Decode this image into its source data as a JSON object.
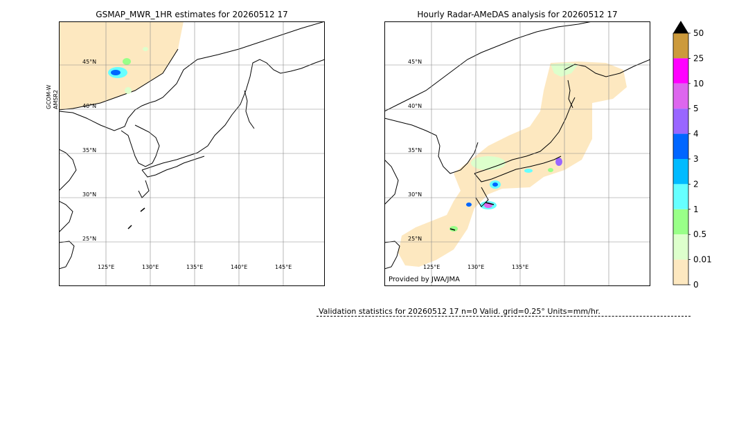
{
  "left_panel": {
    "title": "GSMAP_MWR_1HR estimates for 20260512 17",
    "side_label_1": "GCOM-W",
    "side_label_2": "AMSR2",
    "lat_labels": [
      "45°N",
      "40°N",
      "35°N",
      "30°N",
      "25°N"
    ],
    "lon_labels": [
      "125°E",
      "130°E",
      "135°E",
      "140°E",
      "145°E"
    ]
  },
  "right_panel": {
    "title": "Hourly Radar-AMeDAS analysis for 20260512 17",
    "lat_labels": [
      "45°N",
      "40°N",
      "35°N",
      "30°N",
      "25°N"
    ],
    "lon_labels": [
      "125°E",
      "130°E",
      "135°E"
    ],
    "credit": "Provided by JWA/JMA"
  },
  "colorbar": {
    "labels": [
      "50",
      "25",
      "10",
      "5",
      "4",
      "3",
      "2",
      "1",
      "0.5",
      "0.01",
      "0"
    ],
    "colors": [
      "#cc9a3c",
      "#ff00ff",
      "#dd66ee",
      "#9966ff",
      "#0066ff",
      "#00bbff",
      "#66ffff",
      "#99ff88",
      "#ddffcc",
      "#fde8c0"
    ],
    "extend_color": "#000000"
  },
  "validation": {
    "text": "Validation statistics for 20260512 17  n=0 Valid. grid=0.25° Units=mm/hr."
  }
}
